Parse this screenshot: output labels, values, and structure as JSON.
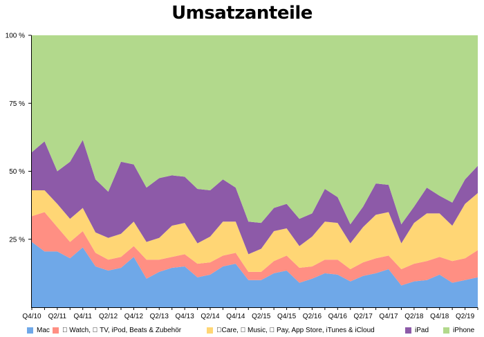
{
  "chart_data": {
    "type": "area",
    "title": "Umsatzanteile",
    "stacked": true,
    "y_ticks": [
      "100 %",
      "75 %",
      "50 %",
      "25 %"
    ],
    "ylim": [
      0,
      100
    ],
    "x_tick_labels": [
      "Q4/10",
      "Q2/11",
      "Q4/11",
      "Q2/12",
      "Q4/12",
      "Q2/13",
      "Q4/13",
      "Q2/14",
      "Q4/14",
      "Q2/15",
      "Q4/15",
      "Q2/16",
      "Q4/16",
      "Q2/17",
      "Q4/17",
      "Q2/18",
      "Q4/18",
      "Q2/19"
    ],
    "x": [
      "Q4/10",
      "Q1/11",
      "Q2/11",
      "Q3/11",
      "Q4/11",
      "Q1/12",
      "Q2/12",
      "Q3/12",
      "Q4/12",
      "Q1/13",
      "Q2/13",
      "Q3/13",
      "Q4/13",
      "Q1/14",
      "Q2/14",
      "Q3/14",
      "Q4/14",
      "Q1/15",
      "Q2/15",
      "Q3/15",
      "Q4/15",
      "Q1/16",
      "Q2/16",
      "Q3/16",
      "Q4/16",
      "Q1/17",
      "Q2/17",
      "Q3/17",
      "Q4/17",
      "Q1/18",
      "Q2/18",
      "Q3/18",
      "Q4/18",
      "Q1/19",
      "Q2/19",
      "Q3/19"
    ],
    "series": [
      {
        "name": "Mac",
        "color": "#6fa8e8",
        "values": [
          24,
          20.5,
          20.5,
          18,
          22,
          15,
          13.5,
          14.5,
          18.5,
          10.5,
          13,
          14.5,
          15,
          11,
          12,
          15,
          16,
          10,
          10,
          12.5,
          13.5,
          9,
          10.5,
          12.5,
          12,
          9.5,
          11.5,
          12.5,
          14,
          8,
          9.5,
          10,
          12,
          9,
          10,
          11
        ]
      },
      {
        "name": " Watch,  TV, iPod, Beats & Zubehör",
        "color": "#ff8f83",
        "values": [
          9.5,
          14.5,
          9,
          6,
          6,
          5,
          4,
          4,
          4,
          7,
          4.5,
          4,
          4.5,
          5,
          4.5,
          4,
          4,
          3,
          3,
          4.5,
          5.5,
          5.5,
          4.5,
          5,
          5.5,
          4.5,
          5,
          5.5,
          5,
          6,
          6.5,
          7,
          6.5,
          8,
          8,
          10
        ]
      },
      {
        "name": "Care,  Music,  Pay, App Store, iTunes & iCloud",
        "color": "#ffd675",
        "values": [
          9.5,
          8,
          8.5,
          8.5,
          8.5,
          7.5,
          8,
          8.5,
          9,
          6.5,
          8,
          11.5,
          11.5,
          7.5,
          9.5,
          12.5,
          11.5,
          6.5,
          8.5,
          11,
          10,
          8,
          11,
          14,
          13.5,
          9.5,
          13,
          16,
          16,
          9.5,
          15,
          17.5,
          16,
          13,
          20,
          21
        ]
      },
      {
        "name": "iPad",
        "color": "#8d5aa8",
        "values": [
          14,
          18,
          12,
          21,
          25,
          19.5,
          17,
          26.5,
          21,
          20,
          22,
          18.5,
          17,
          20,
          17,
          15.5,
          12.5,
          12,
          9.5,
          8.5,
          9,
          10,
          8.5,
          12,
          9.5,
          7,
          7.5,
          11.5,
          10,
          7,
          6,
          9.5,
          6.5,
          8.5,
          9,
          10
        ]
      },
      {
        "name": "iPhone",
        "color": "#b2d98c",
        "values": [
          43,
          39,
          50,
          46.5,
          38.5,
          53,
          57.5,
          46.5,
          47.5,
          56,
          52.5,
          51.5,
          52,
          56.5,
          57,
          53,
          56,
          68.5,
          69,
          63.5,
          62,
          67.5,
          65.5,
          56.5,
          59.5,
          69.5,
          63,
          54.5,
          55,
          69.5,
          63,
          56,
          59,
          61.5,
          53,
          48
        ]
      }
    ]
  }
}
